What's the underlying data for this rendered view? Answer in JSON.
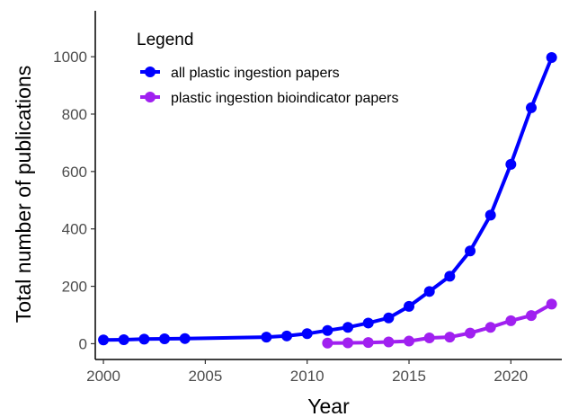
{
  "chart_data": {
    "type": "line",
    "xlabel": "Year",
    "ylabel": "Total number of publications",
    "xlim": [
      1999.6,
      2022.5
    ],
    "ylim": [
      -55,
      1160
    ],
    "xticks": [
      2000,
      2005,
      2010,
      2015,
      2020
    ],
    "yticks": [
      0,
      200,
      400,
      600,
      800,
      1000
    ],
    "grid": false,
    "legend": {
      "title": "Legend",
      "position": "top-left"
    },
    "series": [
      {
        "name": "all plastic ingestion papers",
        "color": "#0000ff",
        "x": [
          2000,
          2001,
          2002,
          2003,
          2004,
          2008,
          2009,
          2010,
          2011,
          2012,
          2013,
          2014,
          2015,
          2016,
          2017,
          2018,
          2019,
          2020,
          2021,
          2022
        ],
        "y": [
          13,
          14,
          16,
          17,
          18,
          23,
          27,
          35,
          46,
          57,
          72,
          90,
          130,
          182,
          235,
          323,
          448,
          625,
          822,
          997
        ]
      },
      {
        "name": "plastic ingestion bioindicator papers",
        "color": "#a020f0",
        "x": [
          2011,
          2012,
          2013,
          2014,
          2015,
          2016,
          2017,
          2018,
          2019,
          2020,
          2021,
          2022
        ],
        "y": [
          2,
          3,
          4,
          6,
          9,
          20,
          23,
          37,
          57,
          80,
          98,
          138
        ]
      }
    ]
  }
}
